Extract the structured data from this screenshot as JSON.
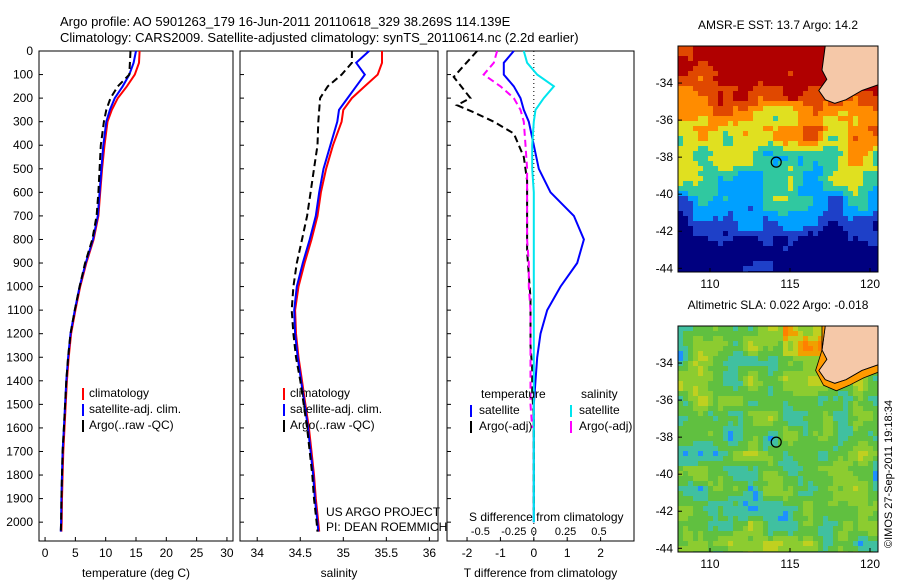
{
  "header": {
    "line1": "Argo profile: AO 5901263_179 16-Jun-2011 20110618_329 38.269S 114.139E",
    "line2": "Climatology: CARS2009. Satellite-adjusted climatology: synTS_20110614.nc (2.2d earlier)"
  },
  "colors": {
    "climatology": "#ff0000",
    "satellite": "#0000ff",
    "argo": "#000000",
    "sal_satellite": "#00e5ee",
    "sal_argo": "#ff00ff",
    "land": "#f5c8a8"
  },
  "credits": {
    "line1": "US ARGO PROJECT",
    "line2": "PI: DEAN ROEMMICH",
    "watermark": "©IMOS 27-Sep-2011 19:18:34"
  },
  "chart_data": [
    {
      "type": "line",
      "xlabel": "temperature (deg C)",
      "ylabel": "",
      "xlim": [
        -1,
        31
      ],
      "ylim": [
        2080,
        0
      ],
      "xticks": [
        0,
        5,
        10,
        15,
        20,
        25,
        30
      ],
      "yticks": [
        0,
        100,
        200,
        300,
        400,
        500,
        600,
        700,
        800,
        900,
        1000,
        1100,
        1200,
        1300,
        1400,
        1500,
        1600,
        1700,
        1800,
        1900,
        2000
      ],
      "legend": [
        "climatology",
        "satellite-adj. clim.",
        "Argo(..raw -QC)"
      ],
      "series": [
        {
          "name": "climatology",
          "style": "solid",
          "color": "#ff0000",
          "x": [
            15.6,
            15.5,
            14.8,
            13.5,
            12.0,
            11.0,
            10.3,
            9.8,
            9.4,
            9.1,
            8.8,
            8.0,
            6.8,
            5.8,
            5.0,
            4.3,
            3.9,
            3.6,
            3.4,
            3.2,
            3.0,
            2.9,
            2.8,
            2.75,
            2.7
          ],
          "y": [
            0,
            50,
            100,
            150,
            200,
            250,
            300,
            400,
            500,
            600,
            700,
            800,
            900,
            1000,
            1100,
            1200,
            1300,
            1400,
            1500,
            1600,
            1700,
            1800,
            1900,
            2000,
            2040
          ]
        },
        {
          "name": "satellite-adj. clim.",
          "style": "solid",
          "color": "#0000ff",
          "x": [
            15.0,
            14.6,
            13.9,
            12.8,
            11.5,
            10.7,
            10.1,
            9.6,
            9.3,
            9.0,
            8.7,
            7.9,
            6.7,
            5.7,
            4.9,
            4.2,
            3.8,
            3.5,
            3.3,
            3.1,
            2.9,
            2.8,
            2.7,
            2.65,
            2.6
          ],
          "y": [
            0,
            50,
            100,
            150,
            200,
            250,
            300,
            400,
            500,
            600,
            700,
            800,
            900,
            1000,
            1100,
            1200,
            1300,
            1400,
            1500,
            1600,
            1700,
            1800,
            1900,
            2000,
            2040
          ]
        },
        {
          "name": "Argo(..raw -QC)",
          "style": "dashed",
          "color": "#000000",
          "x": [
            14.1,
            14.0,
            13.9,
            12.0,
            10.8,
            10.1,
            9.7,
            9.2,
            9.0,
            8.8,
            8.5,
            7.8,
            6.6,
            5.7,
            4.9,
            4.2,
            3.8,
            3.5,
            3.3,
            3.1,
            2.9,
            2.8,
            2.7,
            2.65,
            2.6
          ],
          "y": [
            0,
            50,
            100,
            150,
            200,
            250,
            300,
            400,
            500,
            600,
            700,
            800,
            900,
            1000,
            1100,
            1200,
            1300,
            1400,
            1500,
            1600,
            1700,
            1800,
            1900,
            2000,
            2040
          ]
        }
      ]
    },
    {
      "type": "line",
      "xlabel": "salinity",
      "ylabel": "",
      "xlim": [
        33.8,
        36.1
      ],
      "ylim": [
        2080,
        0
      ],
      "xticks": [
        34,
        34.5,
        35,
        35.5,
        36
      ],
      "legend": [
        "climatology",
        "satellite-adj. clim.",
        "Argo(..raw -QC)"
      ],
      "series": [
        {
          "name": "climatology",
          "style": "solid",
          "color": "#ff0000",
          "x": [
            35.45,
            35.45,
            35.4,
            35.25,
            35.1,
            35.0,
            34.98,
            34.88,
            34.8,
            34.74,
            34.7,
            34.63,
            34.55,
            34.48,
            34.44,
            34.45,
            34.48,
            34.52,
            34.56,
            34.6,
            34.63,
            34.66,
            34.68,
            34.71,
            34.72
          ],
          "y": [
            0,
            50,
            100,
            150,
            200,
            250,
            300,
            400,
            500,
            600,
            700,
            800,
            900,
            1000,
            1100,
            1200,
            1300,
            1400,
            1500,
            1600,
            1700,
            1800,
            1900,
            2000,
            2040
          ]
        },
        {
          "name": "satellite-adj. clim.",
          "style": "solid",
          "color": "#0000ff",
          "x": [
            35.3,
            35.15,
            35.25,
            35.15,
            35.05,
            34.95,
            34.93,
            34.85,
            34.77,
            34.72,
            34.68,
            34.61,
            34.53,
            34.46,
            34.43,
            34.44,
            34.47,
            34.51,
            34.55,
            34.59,
            34.62,
            34.65,
            34.67,
            34.7,
            34.71
          ],
          "y": [
            0,
            50,
            100,
            150,
            200,
            250,
            300,
            400,
            500,
            600,
            700,
            800,
            900,
            1000,
            1100,
            1200,
            1300,
            1400,
            1500,
            1600,
            1700,
            1800,
            1900,
            2000,
            2040
          ]
        },
        {
          "name": "Argo(..raw -QC)",
          "style": "dashed",
          "color": "#000000",
          "x": [
            35.1,
            35.1,
            34.98,
            34.82,
            34.73,
            34.72,
            34.71,
            34.7,
            34.66,
            34.62,
            34.58,
            34.52,
            34.46,
            34.42,
            34.4,
            34.42,
            34.45,
            34.5,
            34.54,
            34.58,
            34.61,
            34.64,
            34.66,
            34.69,
            34.7
          ],
          "y": [
            0,
            50,
            100,
            150,
            200,
            250,
            300,
            400,
            500,
            600,
            700,
            800,
            900,
            1000,
            1100,
            1200,
            1300,
            1400,
            1500,
            1600,
            1700,
            1800,
            1900,
            2000,
            2040
          ]
        }
      ]
    },
    {
      "type": "line",
      "xlabel": "T difference from climatology",
      "xlabel_top": "S difference from climatology",
      "xlim": [
        -2.6,
        3.0
      ],
      "ylim": [
        2080,
        0
      ],
      "xticks_t": [
        -2,
        -1,
        0,
        1,
        2
      ],
      "xticks_s": [
        -0.5,
        -0.25,
        0,
        0.25,
        0.5
      ],
      "xticks_s_labels": [
        "-0.5",
        "-0.25",
        "0",
        "0.25",
        "0.5"
      ],
      "legend_left_title": "temperature",
      "legend_right_title": "salinity",
      "legend_left": [
        "satellite",
        "Argo(-adj)"
      ],
      "legend_right": [
        "satellite",
        "Argo(-adj)"
      ],
      "series": [
        {
          "name": "satellite",
          "group": "temperature",
          "style": "solid",
          "color": "#0000ff",
          "x": [
            -0.6,
            -0.9,
            -0.9,
            -0.6,
            -0.4,
            -0.3,
            -0.15,
            0.0,
            0.15,
            0.5,
            1.2,
            1.5,
            1.3,
            0.8,
            0.4,
            0.2,
            0.1,
            0.05,
            0.0,
            0.0,
            0.0,
            0.0,
            0.0,
            0.0
          ],
          "y": [
            0,
            50,
            100,
            150,
            200,
            250,
            300,
            400,
            500,
            600,
            700,
            800,
            900,
            1000,
            1100,
            1200,
            1300,
            1400,
            1500,
            1600,
            1700,
            1800,
            1900,
            2000
          ]
        },
        {
          "name": "Argo(-adj)",
          "group": "temperature",
          "style": "dashed",
          "color": "#000000",
          "x": [
            -1.7,
            -2.4,
            -1.9,
            -2.3,
            -1.8,
            -1.2,
            -0.6,
            -0.3,
            -0.2,
            -0.2,
            -0.2,
            -0.2,
            -0.15,
            -0.1,
            -0.1,
            -0.1,
            -0.05,
            -0.05,
            0.0,
            0.0,
            0.0,
            0.0,
            0.0
          ],
          "y": [
            0,
            110,
            200,
            230,
            260,
            300,
            350,
            450,
            550,
            650,
            750,
            850,
            950,
            1050,
            1150,
            1250,
            1350,
            1450,
            1550,
            1650,
            1750,
            1850,
            1950
          ]
        },
        {
          "name": "satellite",
          "group": "salinity",
          "style": "solid",
          "color": "#00e5ee",
          "x": [
            -0.3,
            -0.2,
            0.1,
            0.6,
            0.3,
            0.05,
            0.0,
            -0.05,
            -0.05,
            0.0,
            0.0,
            0.0,
            0.0,
            0.0,
            0.0,
            0.0,
            0.0,
            0.0,
            0.0,
            0.0,
            0.0,
            0.0,
            0.0,
            0.0
          ],
          "y": [
            0,
            50,
            100,
            150,
            200,
            250,
            300,
            400,
            500,
            600,
            700,
            800,
            900,
            1000,
            1100,
            1200,
            1300,
            1400,
            1500,
            1600,
            1700,
            1800,
            1900,
            2000
          ]
        },
        {
          "name": "Argo(-adj)",
          "group": "salinity",
          "style": "dashed",
          "color": "#ff00ff",
          "x": [
            -1.1,
            -1.2,
            -1.5,
            -1.0,
            -0.6,
            -0.4,
            -0.3,
            -0.25,
            -0.2,
            -0.2,
            -0.2,
            -0.2,
            -0.15,
            -0.15,
            -0.1,
            -0.1,
            -0.1,
            -0.1,
            -0.1,
            -0.05
          ],
          "y": [
            0,
            50,
            100,
            150,
            200,
            250,
            300,
            400,
            500,
            600,
            700,
            800,
            900,
            1000,
            1100,
            1200,
            1300,
            1400,
            1500,
            1600
          ]
        }
      ]
    },
    {
      "type": "heatmap",
      "title": "AMSR-E SST: 13.7 Argo: 14.2",
      "xlim": [
        108,
        120.5
      ],
      "ylim": [
        -44.2,
        -32
      ],
      "xticks": [
        110,
        115,
        120
      ],
      "yticks": [
        -34,
        -36,
        -38,
        -40,
        -42,
        -44
      ],
      "marker": {
        "lon": 114.139,
        "lat": -38.269
      },
      "palette": [
        "#000080",
        "#1e40c8",
        "#00a0ff",
        "#30c8a0",
        "#e0e020",
        "#ff8c00",
        "#e04800",
        "#b00000"
      ]
    },
    {
      "type": "heatmap",
      "title": "Altimetric SLA: 0.022 Argo: -0.018",
      "xlim": [
        108,
        120.5
      ],
      "ylim": [
        -44.2,
        -32
      ],
      "xticks": [
        110,
        115,
        120
      ],
      "yticks": [
        -34,
        -36,
        -38,
        -40,
        -42,
        -44
      ],
      "marker": {
        "lon": 114.139,
        "lat": -38.269
      },
      "palette": [
        "#1e90ff",
        "#40c0a0",
        "#60c040",
        "#8ccc30",
        "#c0d020",
        "#f0a000",
        "#ff8000"
      ]
    }
  ]
}
